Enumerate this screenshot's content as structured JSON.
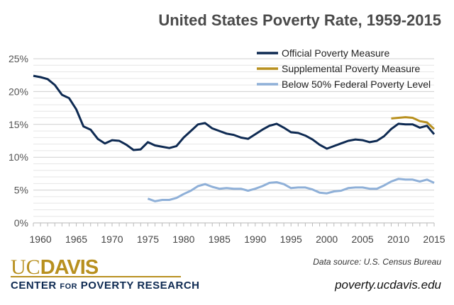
{
  "chart_data": {
    "type": "line",
    "title": "United States Poverty Rate, 1959-2015",
    "xlim": [
      1959,
      2015
    ],
    "ylim": [
      0,
      25
    ],
    "x_ticks": [
      "1960",
      "1965",
      "1970",
      "1975",
      "1980",
      "1985",
      "1990",
      "1995",
      "2000",
      "2005",
      "2010",
      "2015"
    ],
    "y_ticks": [
      "0%",
      "5%",
      "10%",
      "15%",
      "20%",
      "25%"
    ],
    "grid": "horizontal, every 1%",
    "legend_position": "top-right",
    "series": [
      {
        "name": "Official Poverty Measure",
        "color": "#0e2a52",
        "start": 1959,
        "values": [
          22.4,
          22.2,
          21.9,
          21.0,
          19.5,
          19.0,
          17.3,
          14.7,
          14.2,
          12.8,
          12.1,
          12.6,
          12.5,
          11.9,
          11.1,
          11.2,
          12.3,
          11.8,
          11.6,
          11.4,
          11.7,
          13.0,
          14.0,
          15.0,
          15.2,
          14.4,
          14.0,
          13.6,
          13.4,
          13.0,
          12.8,
          13.5,
          14.2,
          14.8,
          15.1,
          14.5,
          13.8,
          13.7,
          13.3,
          12.7,
          11.9,
          11.3,
          11.7,
          12.1,
          12.5,
          12.7,
          12.6,
          12.3,
          12.5,
          13.2,
          14.3,
          15.1,
          15.0,
          15.0,
          14.5,
          14.8,
          13.5
        ]
      },
      {
        "name": "Supplemental Poverty Measure",
        "color": "#b8901f",
        "start": 2009,
        "values": [
          15.9,
          16.0,
          16.1,
          16.0,
          15.5,
          15.3,
          14.3
        ]
      },
      {
        "name": "Below 50% Federal Poverty Level",
        "color": "#8fb0d8",
        "start": 1975,
        "values": [
          3.7,
          3.3,
          3.5,
          3.5,
          3.8,
          4.4,
          4.9,
          5.6,
          5.9,
          5.5,
          5.2,
          5.3,
          5.2,
          5.2,
          4.9,
          5.2,
          5.6,
          6.1,
          6.2,
          5.9,
          5.3,
          5.4,
          5.4,
          5.1,
          4.6,
          4.5,
          4.8,
          4.9,
          5.3,
          5.4,
          5.4,
          5.2,
          5.2,
          5.7,
          6.3,
          6.7,
          6.6,
          6.6,
          6.3,
          6.6,
          6.1
        ]
      }
    ]
  },
  "footer": {
    "logo_uc": "UC",
    "logo_davis": "DAVIS",
    "center_a": "CENTER ",
    "center_b": "FOR",
    "center_c": " POVERTY RESEARCH",
    "source": "Data source: U.S. Census Bureau",
    "url": "poverty.ucdavis.edu"
  }
}
